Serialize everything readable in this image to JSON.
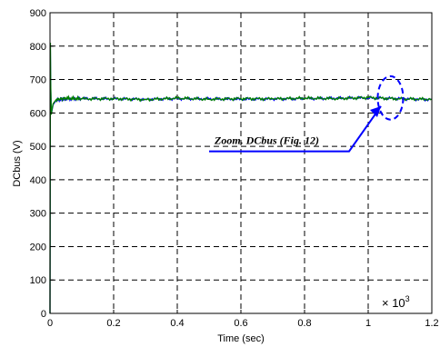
{
  "chart_data": {
    "type": "line",
    "xlabel": "Time (sec)",
    "ylabel": "DCbus (V)",
    "x_multiplier": "× 10",
    "x_multiplier_exp": "3",
    "xlim": [
      0,
      1.2
    ],
    "ylim": [
      0,
      900
    ],
    "xticks": [
      0,
      0.2,
      0.4,
      0.6,
      0.8,
      1,
      1.2
    ],
    "xtick_labels": [
      "0",
      "0.2",
      "0.4",
      "0.6",
      "0.8",
      "1",
      "1.2"
    ],
    "yticks": [
      0,
      100,
      200,
      300,
      400,
      500,
      600,
      700,
      800,
      900
    ],
    "ytick_labels": [
      "0",
      "100",
      "200",
      "300",
      "400",
      "500",
      "600",
      "700",
      "800",
      "900"
    ],
    "grid": true,
    "series": [
      {
        "color": "#0000ff",
        "x": [
          0,
          0.001,
          0.002,
          0.004,
          0.006,
          0.01,
          0.02,
          0.05,
          0.1,
          0.2,
          0.3,
          0.4,
          0.5,
          0.6,
          0.7,
          0.8,
          0.9,
          1.0,
          1.1,
          1.2
        ],
        "y": [
          0,
          800,
          700,
          600,
          605,
          625,
          638,
          642,
          643,
          642,
          641,
          643,
          642,
          641,
          642,
          643,
          644,
          645,
          643,
          640
        ]
      },
      {
        "color": "#008000",
        "x": [
          0,
          0.001,
          0.002,
          0.004,
          0.006,
          0.01,
          0.02,
          0.05,
          0.1,
          0.2,
          0.3,
          0.4,
          0.5,
          0.6,
          0.7,
          0.8,
          0.9,
          1.0,
          1.1,
          1.2
        ],
        "y": [
          0,
          810,
          690,
          595,
          610,
          628,
          640,
          644,
          642,
          643,
          640,
          644,
          641,
          643,
          642,
          644,
          643,
          646,
          642,
          641
        ]
      }
    ],
    "annotation": {
      "text": "Zoom. DCbus (Fig. 12)",
      "line_start": [
        0.5,
        485
      ],
      "line_end": [
        0.94,
        485
      ],
      "arrow_tip": [
        1.04,
        620
      ],
      "ellipse_center": [
        1.07,
        645
      ],
      "ellipse_radius": [
        0.04,
        65
      ]
    },
    "colors": {
      "annotation": "#0000ff",
      "grid": "#000000"
    }
  }
}
